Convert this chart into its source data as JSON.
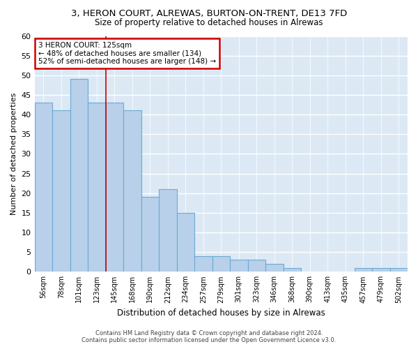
{
  "title": "3, HERON COURT, ALREWAS, BURTON-ON-TRENT, DE13 7FD",
  "subtitle": "Size of property relative to detached houses in Alrewas",
  "xlabel": "Distribution of detached houses by size in Alrewas",
  "ylabel": "Number of detached properties",
  "categories": [
    "56sqm",
    "78sqm",
    "101sqm",
    "123sqm",
    "145sqm",
    "168sqm",
    "190sqm",
    "212sqm",
    "234sqm",
    "257sqm",
    "279sqm",
    "301sqm",
    "323sqm",
    "346sqm",
    "368sqm",
    "390sqm",
    "413sqm",
    "435sqm",
    "457sqm",
    "479sqm",
    "502sqm"
  ],
  "values": [
    43,
    41,
    49,
    43,
    43,
    41,
    19,
    21,
    15,
    4,
    4,
    3,
    3,
    2,
    1,
    0,
    0,
    0,
    1,
    1,
    1
  ],
  "bar_color": "#b8d0ea",
  "bar_edge_color": "#6aaad4",
  "vline_x_index": 3,
  "vline_color": "#cc0000",
  "annotation_text": "3 HERON COURT: 125sqm\n← 48% of detached houses are smaller (134)\n52% of semi-detached houses are larger (148) →",
  "annotation_box_color": "white",
  "annotation_box_edge": "#cc0000",
  "ylim": [
    0,
    60
  ],
  "yticks": [
    0,
    5,
    10,
    15,
    20,
    25,
    30,
    35,
    40,
    45,
    50,
    55,
    60
  ],
  "background_color": "#dce9f5",
  "grid_color": "#c8d8ec",
  "footer_line1": "Contains HM Land Registry data © Crown copyright and database right 2024.",
  "footer_line2": "Contains public sector information licensed under the Open Government Licence v3.0."
}
